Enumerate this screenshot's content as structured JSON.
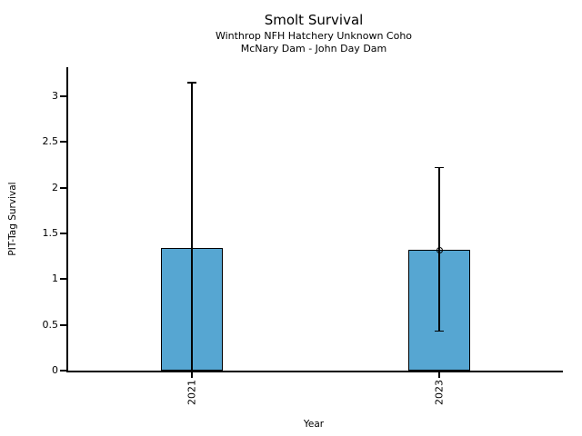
{
  "chart_data": {
    "type": "bar",
    "title": "Smolt Survival",
    "subtitle1": "Winthrop NFH Hatchery Unknown Coho",
    "subtitle2": "McNary Dam - John Day Dam",
    "xlabel": "Year",
    "ylabel": "PIT-Tag Survival",
    "categories": [
      "2021",
      "2023"
    ],
    "values": [
      1.34,
      1.32
    ],
    "error_upper": [
      3.15,
      2.22
    ],
    "error_lower": [
      0.0,
      0.43
    ],
    "point_markers": [
      null,
      1.32
    ],
    "yticks": [
      {
        "value": 0,
        "label": "0"
      },
      {
        "value": 0.5,
        "label": "0.5"
      },
      {
        "value": 1,
        "label": "1"
      },
      {
        "value": 1.5,
        "label": "1.5"
      },
      {
        "value": 2,
        "label": "2"
      },
      {
        "value": 2.5,
        "label": "2.5"
      },
      {
        "value": 3,
        "label": "3"
      }
    ],
    "ylim": [
      0,
      3.32
    ],
    "grid": false,
    "legend_position": "none",
    "bar_color": "#56a6d2",
    "bar_edge_color": "#000000",
    "error_color": "#000000",
    "text_color": "#000000",
    "background_color": "#ffffff"
  }
}
